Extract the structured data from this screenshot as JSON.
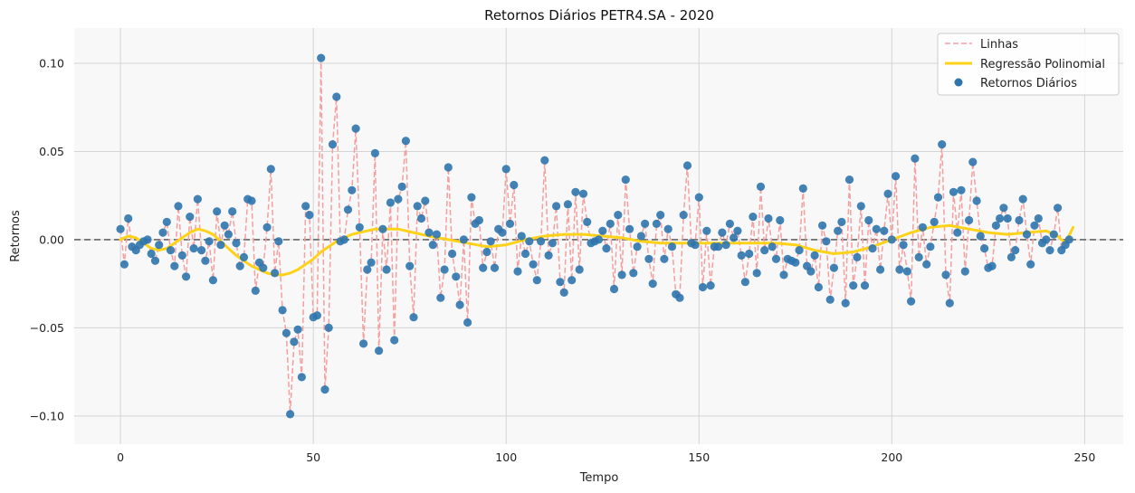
{
  "chart_data": {
    "type": "scatter",
    "title": "Retornos Diários PETR4.SA - 2020",
    "xlabel": "Tempo",
    "ylabel": "Retornos",
    "xlim": [
      -12,
      260
    ],
    "ylim": [
      -0.116,
      0.12
    ],
    "x_ticks": [
      0,
      50,
      100,
      150,
      200,
      250
    ],
    "x_tick_labels": [
      "0",
      "50",
      "100",
      "150",
      "200",
      "250"
    ],
    "y_ticks": [
      -0.1,
      -0.05,
      0.0,
      0.05,
      0.1
    ],
    "y_tick_labels": [
      "−0.10",
      "−0.05",
      "0.00",
      "0.05",
      "0.10"
    ],
    "grid": true,
    "legend_position": "top-right",
    "zero_line": 0.0,
    "colors": {
      "background": "#f8f8f8",
      "grid": "#d4d4d4",
      "points": "#2e74ad",
      "lines": "#f4a0a0",
      "regression": "#ffd21a",
      "zero_line": "#666666"
    },
    "series": [
      {
        "name": "Retornos Diários",
        "kind": "scatter",
        "y": [
          0.006,
          -0.014,
          0.012,
          -0.004,
          -0.006,
          -0.003,
          -0.001,
          0.0,
          -0.008,
          -0.012,
          -0.003,
          0.004,
          0.01,
          -0.006,
          -0.015,
          0.019,
          -0.009,
          -0.021,
          0.013,
          -0.005,
          0.023,
          -0.006,
          -0.012,
          -0.001,
          -0.023,
          0.016,
          -0.003,
          0.008,
          0.003,
          0.016,
          -0.002,
          -0.015,
          -0.01,
          0.023,
          0.022,
          -0.029,
          -0.013,
          -0.016,
          0.007,
          0.04,
          -0.019,
          -0.001,
          -0.04,
          -0.053,
          -0.099,
          -0.058,
          -0.051,
          -0.078,
          0.019,
          0.014,
          -0.044,
          -0.043,
          0.103,
          -0.085,
          -0.05,
          0.054,
          0.081,
          -0.001,
          0.0,
          0.017,
          0.028,
          0.063,
          0.007,
          -0.059,
          -0.017,
          -0.013,
          0.049,
          -0.063,
          0.006,
          -0.017,
          0.021,
          -0.057,
          0.023,
          0.03,
          0.056,
          -0.015,
          -0.044,
          0.019,
          0.012,
          0.022,
          0.004,
          -0.003,
          0.003,
          -0.033,
          -0.017,
          0.041,
          -0.008,
          -0.021,
          -0.037,
          0.0,
          -0.047,
          0.024,
          0.009,
          0.011,
          -0.016,
          -0.007,
          -0.001,
          -0.016,
          0.006,
          0.004,
          0.04,
          0.009,
          0.031,
          -0.018,
          0.002,
          -0.008,
          -0.001,
          -0.014,
          -0.023,
          -0.001,
          0.045,
          -0.009,
          -0.002,
          0.019,
          -0.024,
          -0.03,
          0.02,
          -0.023,
          0.027,
          -0.017,
          0.026,
          0.01,
          -0.002,
          -0.001,
          0.0,
          0.005,
          -0.005,
          0.009,
          -0.028,
          0.014,
          -0.02,
          0.034,
          0.006,
          -0.019,
          -0.004,
          0.002,
          0.009,
          -0.011,
          -0.025,
          0.009,
          0.014,
          -0.011,
          0.006,
          -0.004,
          -0.031,
          -0.033,
          0.014,
          0.042,
          -0.002,
          -0.003,
          0.024,
          -0.027,
          0.005,
          -0.026,
          -0.004,
          -0.004,
          0.004,
          -0.003,
          0.009,
          0.001,
          0.005,
          -0.009,
          -0.024,
          -0.008,
          0.013,
          -0.019,
          0.03,
          -0.006,
          0.012,
          -0.004,
          -0.011,
          0.011,
          -0.02,
          -0.011,
          -0.012,
          -0.013,
          -0.006,
          0.029,
          -0.015,
          -0.018,
          -0.009,
          -0.027,
          0.008,
          -0.001,
          -0.034,
          -0.016,
          0.005,
          0.01,
          -0.036,
          0.034,
          -0.026,
          -0.01,
          0.019,
          -0.026,
          0.011,
          -0.005,
          0.006,
          -0.017,
          0.005,
          0.026,
          0.0,
          0.036,
          -0.017,
          -0.003,
          -0.018,
          -0.035,
          0.046,
          -0.01,
          0.007,
          -0.014,
          -0.004,
          0.01,
          0.024,
          0.054,
          -0.02,
          -0.036,
          0.027,
          0.004,
          0.028,
          -0.018,
          0.011,
          0.044,
          0.022,
          0.002,
          -0.005,
          -0.016,
          -0.015,
          0.008,
          0.012,
          0.018,
          0.012,
          -0.01,
          -0.006,
          0.011,
          0.023,
          0.003,
          -0.014,
          0.008,
          0.012,
          -0.002,
          0.0,
          -0.006,
          0.003,
          0.018,
          -0.006,
          -0.003,
          0.0
        ]
      },
      {
        "name": "Linhas",
        "kind": "dashed-line",
        "source": "Retornos Diários"
      },
      {
        "name": "Regressão Polinomial",
        "kind": "line",
        "x": [
          0,
          2,
          4,
          6,
          8,
          10,
          12,
          14,
          16,
          18,
          20,
          22,
          24,
          26,
          28,
          30,
          32,
          34,
          36,
          38,
          40,
          42,
          44,
          46,
          48,
          50,
          52,
          54,
          56,
          58,
          60,
          62,
          64,
          66,
          68,
          70,
          72,
          74,
          76,
          78,
          80,
          85,
          90,
          95,
          100,
          105,
          110,
          115,
          120,
          125,
          130,
          135,
          140,
          145,
          150,
          155,
          160,
          165,
          170,
          175,
          180,
          185,
          190,
          195,
          200,
          205,
          210,
          215,
          220,
          225,
          230,
          235,
          240,
          243,
          245,
          247
        ],
        "y": [
          0.0,
          0.002,
          0.001,
          -0.002,
          -0.005,
          -0.006,
          -0.005,
          -0.002,
          0.001,
          0.004,
          0.006,
          0.005,
          0.003,
          -0.001,
          -0.005,
          -0.009,
          -0.012,
          -0.015,
          -0.017,
          -0.019,
          -0.02,
          -0.02,
          -0.019,
          -0.017,
          -0.014,
          -0.011,
          -0.007,
          -0.004,
          -0.001,
          0.001,
          0.003,
          0.004,
          0.005,
          0.006,
          0.006,
          0.006,
          0.006,
          0.005,
          0.004,
          0.003,
          0.002,
          0.0,
          -0.002,
          -0.004,
          -0.003,
          0.0,
          0.002,
          0.003,
          0.003,
          0.002,
          0.001,
          -0.001,
          -0.002,
          -0.002,
          -0.002,
          -0.002,
          -0.002,
          -0.002,
          -0.002,
          -0.003,
          -0.006,
          -0.008,
          -0.007,
          -0.004,
          0.0,
          0.004,
          0.007,
          0.008,
          0.006,
          0.004,
          0.003,
          0.004,
          0.005,
          0.002,
          -0.002,
          0.007
        ]
      }
    ]
  }
}
